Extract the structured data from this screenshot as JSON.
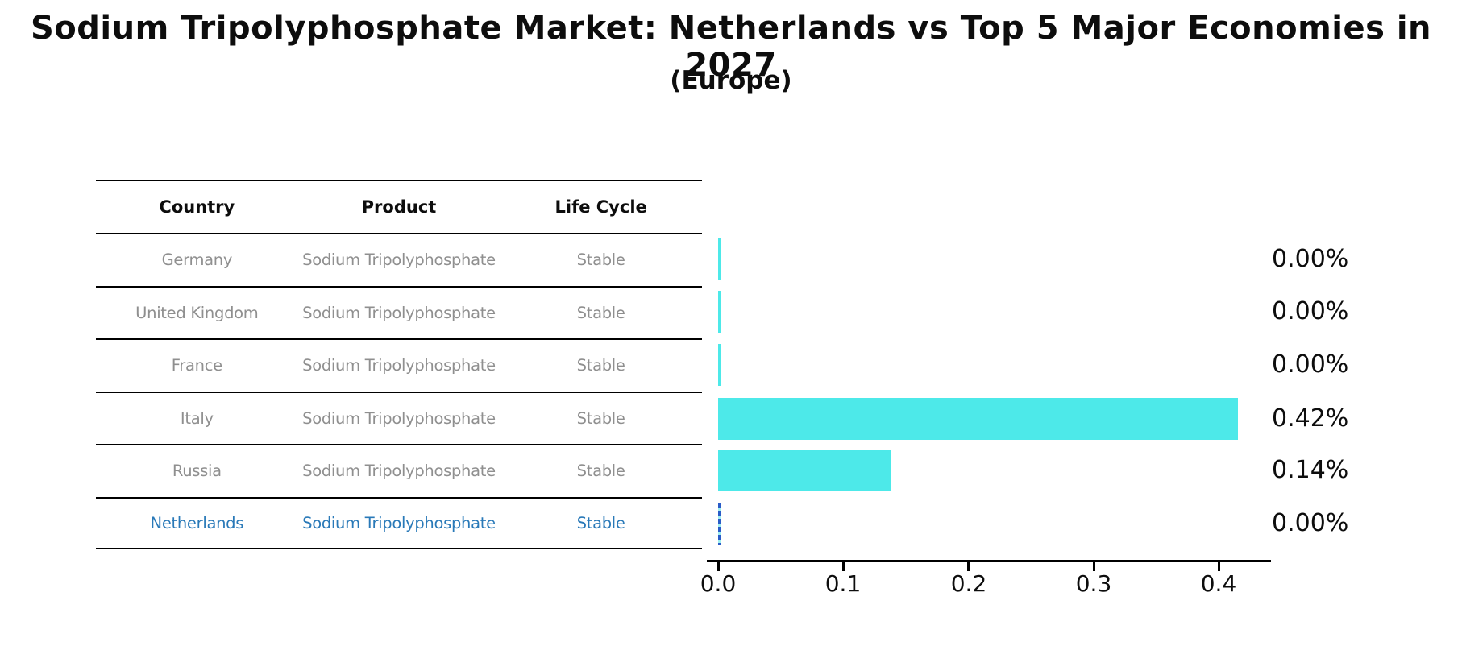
{
  "title": "Sodium Tripolyphosphate Market: Netherlands vs Top 5 Major Economies in 2027",
  "subtitle": "(Europe)",
  "table": {
    "headers": [
      "Country",
      "Product",
      "Life Cycle"
    ],
    "rows": [
      {
        "country": "Germany",
        "product": "Sodium Tripolyphosphate",
        "life_cycle": "Stable",
        "highlighted": false
      },
      {
        "country": "United Kingdom",
        "product": "Sodium Tripolyphosphate",
        "life_cycle": "Stable",
        "highlighted": false
      },
      {
        "country": "France",
        "product": "Sodium Tripolyphosphate",
        "life_cycle": "Stable",
        "highlighted": false
      },
      {
        "country": "Italy",
        "product": "Sodium Tripolyphosphate",
        "life_cycle": "Stable",
        "highlighted": false
      },
      {
        "country": "Russia",
        "product": "Sodium Tripolyphosphate",
        "life_cycle": "Stable",
        "highlighted": false
      },
      {
        "country": "Netherlands",
        "product": "Sodium Tripolyphosphate",
        "life_cycle": "Stable",
        "highlighted": true
      }
    ]
  },
  "chart_data": {
    "type": "bar",
    "orientation": "horizontal",
    "title": "Sodium Tripolyphosphate Market: Netherlands vs Top 5 Major Economies in 2027",
    "subtitle": "(Europe)",
    "categories": [
      "Germany",
      "United Kingdom",
      "France",
      "Italy",
      "Russia",
      "Netherlands"
    ],
    "values": [
      0.0,
      0.0,
      0.0,
      0.42,
      0.14,
      0.0
    ],
    "value_labels": [
      "0.00%",
      "0.00%",
      "0.00%",
      "0.42%",
      "0.14%",
      "0.00%"
    ],
    "xlabel": "",
    "ylabel": "",
    "xlim": [
      0.0,
      0.44
    ],
    "xticks": [
      "0.0",
      "0.1",
      "0.2",
      "0.3",
      "0.4"
    ],
    "grid": false,
    "legend": "none",
    "bar_color": "#4DE9E9",
    "highlight_index": 5,
    "highlight_bar_style": "dashed-blue",
    "highlight_color": "#2A5CC8",
    "highlight_text_color": "#2979B8"
  }
}
